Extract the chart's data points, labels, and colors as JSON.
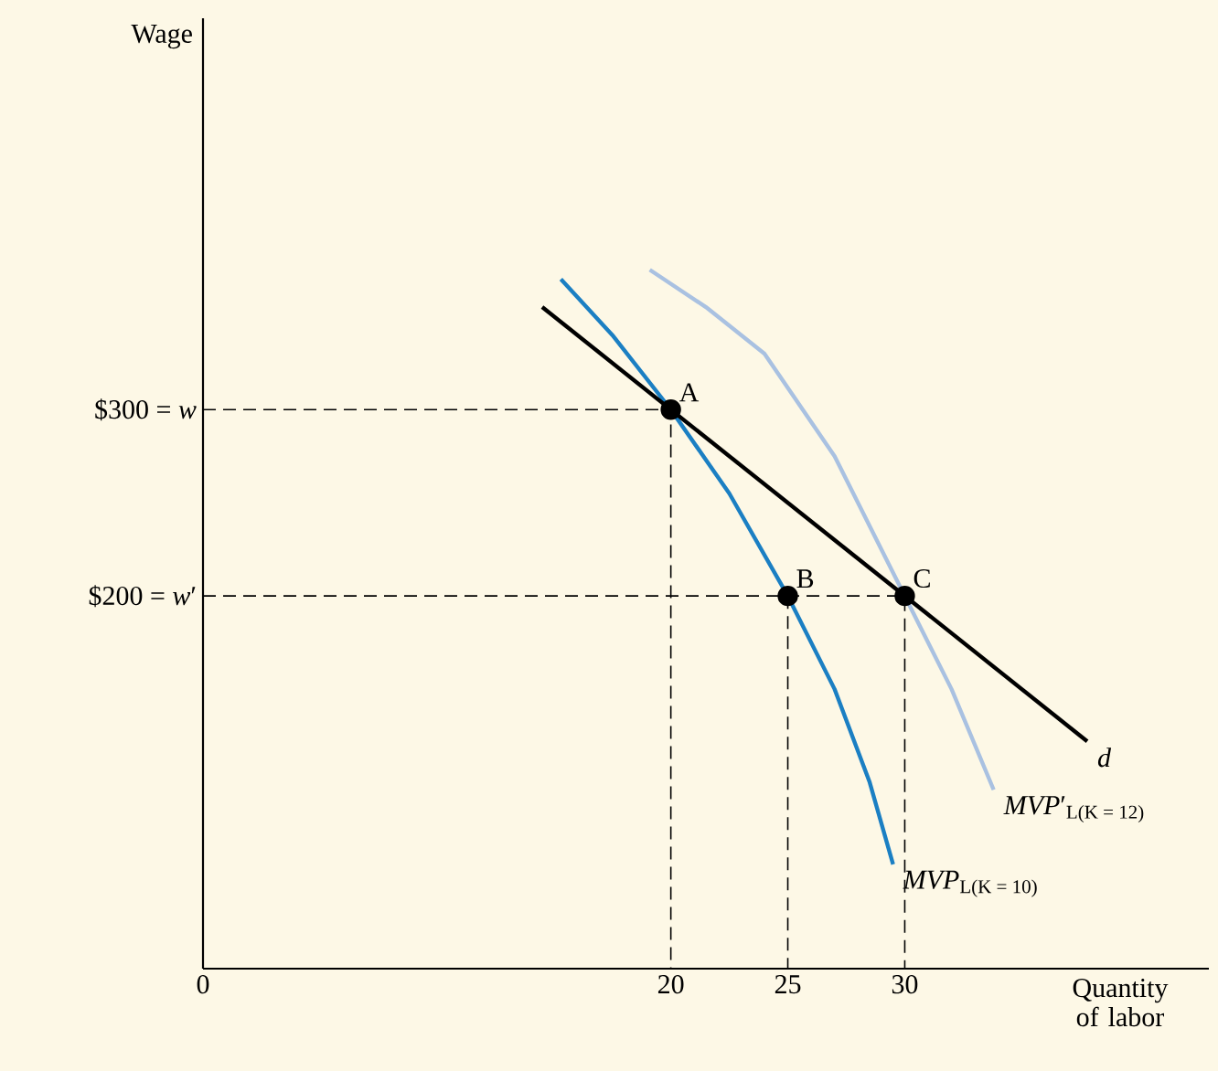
{
  "chart_data": {
    "type": "line",
    "xlabel": "Quantity of labor",
    "ylabel": "Wage",
    "xlim": [
      0,
      43
    ],
    "ylim": [
      0,
      510
    ],
    "xticks": [
      0,
      20,
      25,
      30
    ],
    "yticks": [
      {
        "value": 200,
        "label": "$200 = *w*′"
      },
      {
        "value": 300,
        "label": "$300 = *w*"
      }
    ],
    "grid": false,
    "legend": false,
    "series": [
      {
        "name": "*MVP*′$_{L(K = 12)}$",
        "color": "#a9c1e1",
        "x": [
          19.1,
          21.5,
          24,
          27,
          30,
          32,
          33.8
        ],
        "values": [
          375,
          355,
          330,
          275,
          200,
          150,
          96
        ]
      },
      {
        "name": "*MVP*$_{L(K = 10)}$",
        "color": "#1b7fc3",
        "x": [
          15.3,
          17.5,
          20,
          22.5,
          25,
          27,
          28.5,
          29.5
        ],
        "values": [
          370,
          340,
          300,
          255,
          200,
          150,
          100,
          56
        ]
      },
      {
        "name": "*d*",
        "color": "#000000",
        "x": [
          14.5,
          37.8
        ],
        "values": [
          355,
          122
        ]
      },
      {
        "color": "#000000",
        "line_style": "dashed",
        "x": [
          0,
          20,
          20
        ],
        "values": [
          300,
          300,
          0
        ]
      },
      {
        "color": "#000000",
        "line_style": "dashed",
        "x": [
          0,
          30,
          30
        ],
        "values": [
          200,
          200,
          0
        ]
      },
      {
        "color": "#000000",
        "line_style": "dashed",
        "x": [
          25,
          25
        ],
        "values": [
          200,
          0
        ]
      },
      {
        "type": "scatter",
        "color": "#000000",
        "marker": "circle",
        "x": [
          20,
          25,
          30
        ],
        "values": [
          300,
          200,
          200
        ]
      }
    ],
    "annotations": [
      {
        "text": "A",
        "x": 20,
        "y": 300
      },
      {
        "text": "B",
        "x": 25,
        "y": 200
      },
      {
        "text": "C",
        "x": 30,
        "y": 200
      }
    ]
  }
}
